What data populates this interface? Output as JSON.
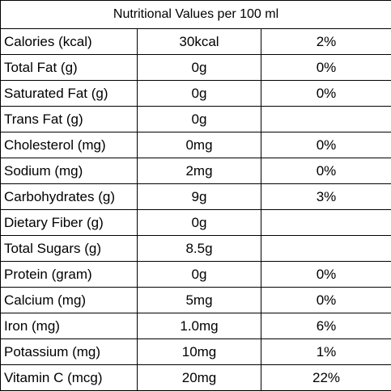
{
  "title": "Nutritional Values per 100 ml",
  "rows": [
    {
      "name": "Calories (kcal)",
      "value": "30kcal",
      "dv": "2%"
    },
    {
      "name": "Total Fat (g)",
      "value": "0g",
      "dv": "0%"
    },
    {
      "name": "Saturated Fat (g)",
      "value": "0g",
      "dv": "0%"
    },
    {
      "name": "Trans Fat (g)",
      "value": "0g",
      "dv": ""
    },
    {
      "name": "Cholesterol (mg)",
      "value": "0mg",
      "dv": "0%"
    },
    {
      "name": "Sodium (mg)",
      "value": "2mg",
      "dv": "0%"
    },
    {
      "name": "Carbohydrates (g)",
      "value": "9g",
      "dv": "3%"
    },
    {
      "name": "Dietary Fiber (g)",
      "value": "0g",
      "dv": ""
    },
    {
      "name": "Total Sugars (g)",
      "value": "8.5g",
      "dv": ""
    },
    {
      "name": "Protein (gram)",
      "value": "0g",
      "dv": "0%"
    },
    {
      "name": "Calcium (mg)",
      "value": "5mg",
      "dv": "0%"
    },
    {
      "name": "Iron (mg)",
      "value": "1.0mg",
      "dv": "6%"
    },
    {
      "name": "Potassium (mg)",
      "value": "10mg",
      "dv": "1%"
    },
    {
      "name": "Vitamin C (mcg)",
      "value": "20mg",
      "dv": "22%"
    }
  ]
}
